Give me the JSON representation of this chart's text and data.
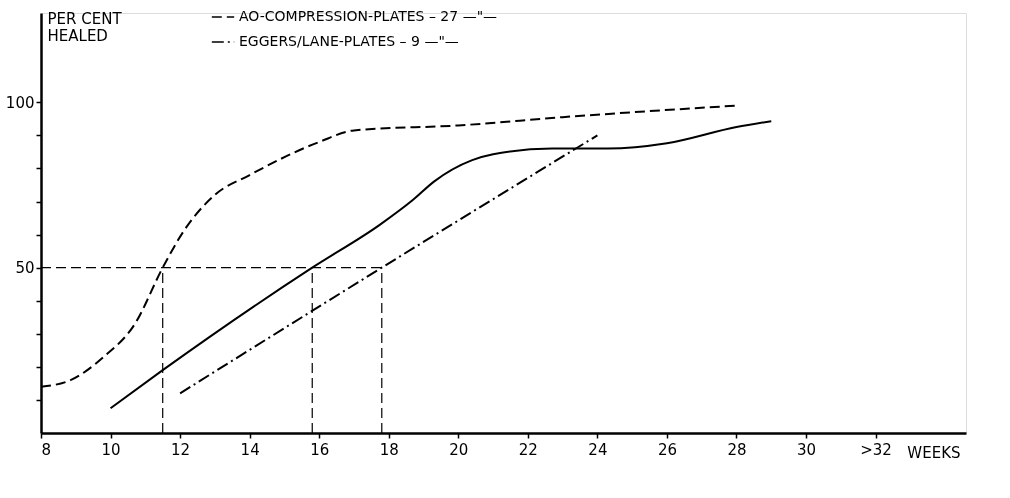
{
  "chart_data": {
    "type": "line",
    "xlabel": "WEEKS",
    "ylabel": "PER CENT\nHEALED",
    "xlim": [
      8,
      34.6
    ],
    "ylim": [
      0,
      127
    ],
    "xticks": [
      8,
      10,
      12,
      14,
      16,
      18,
      20,
      22,
      24,
      26,
      28,
      30,
      {
        "value": 32,
        "label": ">32"
      }
    ],
    "yticks": [
      {
        "value": 10,
        "label": null
      },
      {
        "value": 20,
        "label": null
      },
      {
        "value": 30,
        "label": null
      },
      {
        "value": 40,
        "label": null
      },
      50,
      {
        "value": 60,
        "label": null
      },
      {
        "value": 70,
        "label": null
      },
      {
        "value": 80,
        "label": null
      },
      {
        "value": 90,
        "label": null
      },
      100
    ],
    "series": [
      {
        "name": "AO-COMPRESSION-PLATES   – 27 —\"—",
        "color": "#000000",
        "line_style": "dashed",
        "x": [
          8,
          8.85,
          9.8,
          10.7,
          11.5,
          12.1,
          13,
          14,
          16,
          17,
          20,
          23,
          28
        ],
        "values": [
          14,
          16,
          23,
          33,
          50,
          61,
          72,
          78,
          88,
          91.5,
          93,
          95.5,
          99
        ]
      },
      {
        "name": "EGGERS/LANE-PLATES   – 9 —\"—",
        "color": "#000000",
        "line_style": "dashdot",
        "x": [
          12,
          17.8,
          24
        ],
        "values": [
          12,
          50,
          90
        ]
      },
      {
        "color": "#000000",
        "line_style": "solid",
        "x": [
          10,
          11.5,
          15.8,
          17.75,
          18.7,
          19.3,
          20.4,
          21,
          22.7,
          24.3,
          26,
          28,
          29
        ],
        "values": [
          7.5,
          19,
          50,
          63,
          70.5,
          76,
          82.5,
          84.3,
          86,
          86,
          87.6,
          92.5,
          94.3
        ]
      }
    ],
    "ref_lines": [
      {
        "axis": "y",
        "value": 50,
        "line_style": "dashed"
      },
      {
        "axis": "x",
        "value": 11.5,
        "line_style": "dashed"
      },
      {
        "axis": "x",
        "value": 15.8,
        "line_style": "dashed"
      },
      {
        "axis": "x",
        "value": 17.8,
        "line_style": "dashed"
      }
    ],
    "grid": false,
    "legend": "top",
    "marker": "none"
  }
}
